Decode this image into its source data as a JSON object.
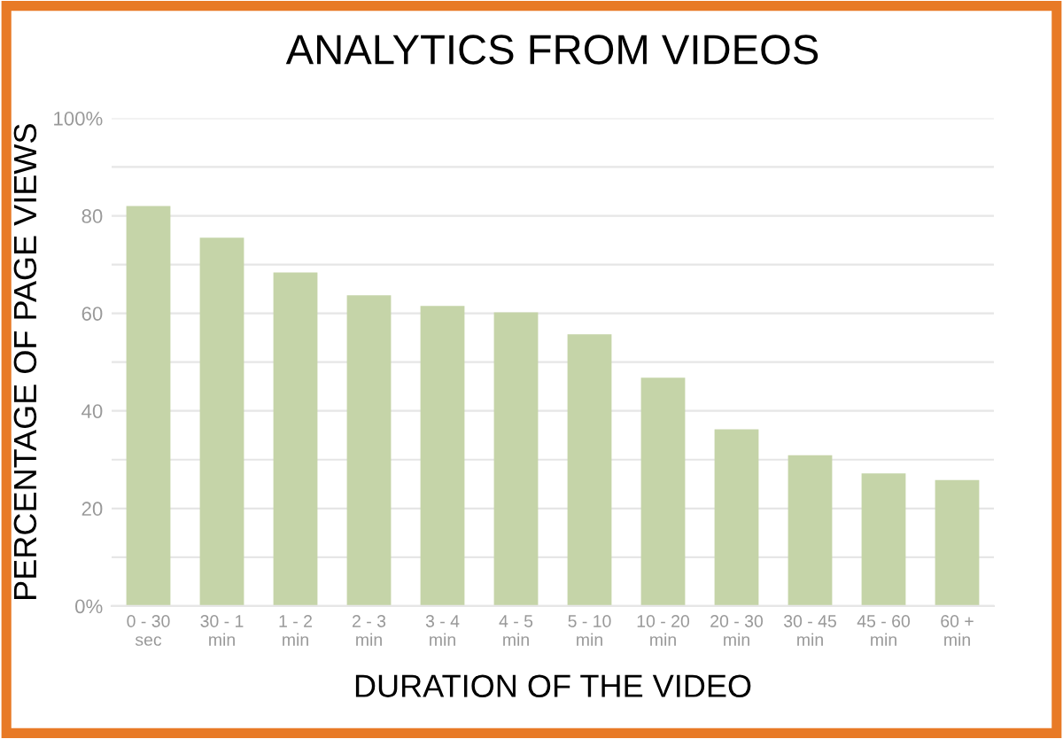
{
  "chart_data": {
    "type": "bar",
    "title": "ANALYTICS FROM VIDEOS",
    "xlabel": "DURATION OF THE VIDEO",
    "ylabel": "PERCENTAGE OF PAGE VIEWS",
    "categories": [
      "0 - 30\nsec",
      "30 - 1\nmin",
      "1 - 2\nmin",
      "2 - 3\nmin",
      "3 - 4\nmin",
      "4 - 5\nmin",
      "5 - 10\nmin",
      "10 - 20\nmin",
      "20 - 30\nmin",
      "30 - 45\nmin",
      "45 - 60\nmin",
      "60 +\nmin"
    ],
    "values": [
      82,
      75.5,
      68.4,
      63.7,
      61.5,
      60.2,
      55.7,
      46.8,
      36.2,
      30.9,
      27.2,
      25.8
    ],
    "color": "#c5d4a8",
    "ylim": [
      0,
      100
    ],
    "yticks": [
      {
        "value": 0,
        "label": "0%"
      },
      {
        "value": 10,
        "label": null
      },
      20,
      {
        "value": 30,
        "label": null
      },
      40,
      {
        "value": 50,
        "label": null
      },
      60,
      {
        "value": 70,
        "label": null
      },
      80,
      {
        "value": 90,
        "label": null
      },
      {
        "value": 100,
        "label": "100%"
      }
    ],
    "grid": "y"
  }
}
